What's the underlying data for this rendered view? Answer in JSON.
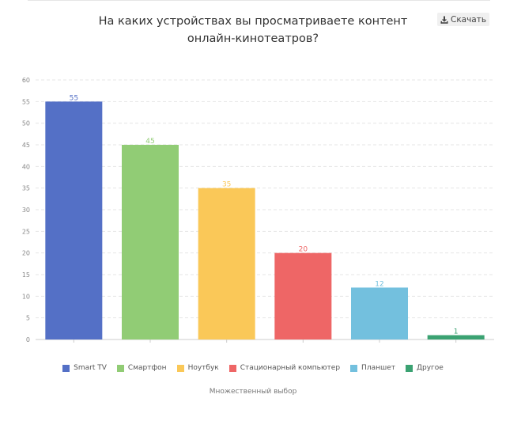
{
  "title_line1": "На каких устройствах вы просматриваете контент",
  "title_line2": "онлайн-кинотеатров?",
  "download_label": "Скачать",
  "footer_note": "Множественный выбор",
  "chart_data": {
    "type": "bar",
    "categories": [
      "Smart TV",
      "Смартфон",
      "Ноутбук",
      "Стационарный компьютер",
      "Планшет",
      "Другое"
    ],
    "values": [
      55,
      45,
      35,
      20,
      12,
      1
    ],
    "colors": [
      "#5470c6",
      "#91cc75",
      "#fac858",
      "#ee6666",
      "#73c0de",
      "#3ba272"
    ],
    "ylim": [
      0,
      60
    ],
    "yticks": [
      0,
      5,
      10,
      15,
      20,
      25,
      30,
      35,
      40,
      45,
      50,
      55,
      60
    ],
    "grid": true,
    "legend_position": "bottom",
    "data_labels": true
  }
}
